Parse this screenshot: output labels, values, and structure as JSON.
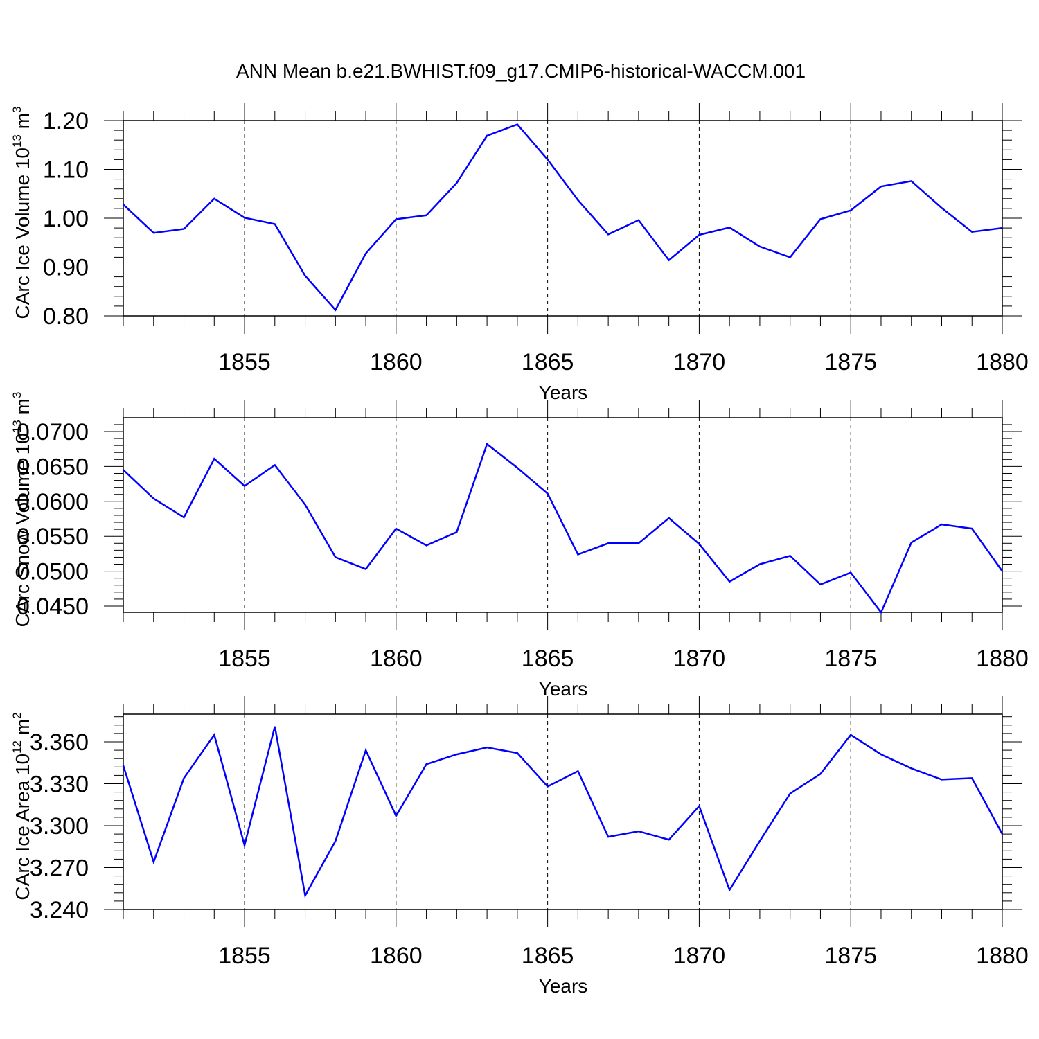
{
  "title": "ANN Mean b.e21.BWHIST.f09_g17.CMIP6-historical-WACCM.001",
  "chart_data": [
    {
      "type": "line",
      "title": "ANN Mean b.e21.BWHIST.f09_g17.CMIP6-historical-WACCM.001",
      "xlabel": "Years",
      "ylabel_parts": [
        "CArc Ice Volume 10",
        "13",
        " m",
        "3"
      ],
      "xlim": [
        1851,
        1880
      ],
      "ylim": [
        0.8,
        1.22
      ],
      "xticks": [
        1855,
        1860,
        1865,
        1870,
        1875,
        1880
      ],
      "yticks": [
        0.8,
        0.9,
        1.0,
        1.1,
        1.2
      ],
      "ytick_labels": [
        "0.80",
        "0.90",
        "1.00",
        "1.10",
        "1.20"
      ],
      "grid": "vertical dashed at major x ticks",
      "line_color": "#0000ff",
      "x": [
        1851,
        1852,
        1853,
        1854,
        1855,
        1856,
        1857,
        1858,
        1859,
        1860,
        1861,
        1862,
        1863,
        1864,
        1865,
        1866,
        1867,
        1868,
        1869,
        1870,
        1871,
        1872,
        1873,
        1874,
        1875,
        1876,
        1877,
        1878,
        1879,
        1880
      ],
      "values": [
        1.028,
        0.97,
        0.978,
        1.04,
        1.001,
        0.988,
        0.882,
        0.812,
        0.928,
        0.998,
        1.006,
        1.072,
        1.169,
        1.192,
        1.12,
        1.037,
        0.967,
        0.996,
        0.914,
        0.966,
        0.981,
        0.942,
        0.92,
        0.998,
        1.016,
        1.065,
        1.076,
        1.021,
        0.972,
        0.98
      ]
    },
    {
      "type": "line",
      "title": "",
      "xlabel": "Years",
      "ylabel_parts": [
        "CArc Snow Volume 10",
        "13",
        " m",
        "3"
      ],
      "xlim": [
        1851,
        1880
      ],
      "ylim": [
        0.044,
        0.072
      ],
      "xticks": [
        1855,
        1860,
        1865,
        1870,
        1875,
        1880
      ],
      "yticks": [
        0.045,
        0.05,
        0.055,
        0.06,
        0.065,
        0.07
      ],
      "ytick_labels": [
        "0.0450",
        "0.0500",
        "0.0550",
        "0.0600",
        "0.0650",
        "0.0700"
      ],
      "grid": "vertical dashed at major x ticks",
      "line_color": "#0000ff",
      "x": [
        1851,
        1852,
        1853,
        1854,
        1855,
        1856,
        1857,
        1858,
        1859,
        1860,
        1861,
        1862,
        1863,
        1864,
        1865,
        1866,
        1867,
        1868,
        1869,
        1870,
        1871,
        1872,
        1873,
        1874,
        1875,
        1876,
        1877,
        1878,
        1879,
        1880
      ],
      "values": [
        0.0645,
        0.0604,
        0.0577,
        0.0661,
        0.0622,
        0.0652,
        0.0595,
        0.052,
        0.0503,
        0.0561,
        0.0537,
        0.0556,
        0.0682,
        0.0648,
        0.0611,
        0.0524,
        0.054,
        0.054,
        0.0576,
        0.0539,
        0.0485,
        0.051,
        0.0522,
        0.0481,
        0.0498,
        0.0441,
        0.0541,
        0.0567,
        0.0561,
        0.05
      ]
    },
    {
      "type": "line",
      "title": "",
      "xlabel": "Years",
      "ylabel_parts": [
        "CArc Ice Area 10",
        "12",
        " m",
        "2"
      ],
      "xlim": [
        1851,
        1880
      ],
      "ylim": [
        3.24,
        3.38
      ],
      "xticks": [
        1855,
        1860,
        1865,
        1870,
        1875,
        1880
      ],
      "yticks": [
        3.24,
        3.27,
        3.3,
        3.33,
        3.36
      ],
      "ytick_labels": [
        "3.240",
        "3.270",
        "3.300",
        "3.330",
        "3.360"
      ],
      "grid": "vertical dashed at major x ticks",
      "line_color": "#0000ff",
      "x": [
        1851,
        1852,
        1853,
        1854,
        1855,
        1856,
        1857,
        1858,
        1859,
        1860,
        1861,
        1862,
        1863,
        1864,
        1865,
        1866,
        1867,
        1868,
        1869,
        1870,
        1871,
        1872,
        1873,
        1874,
        1875,
        1876,
        1877,
        1878,
        1879,
        1880
      ],
      "values": [
        3.343,
        3.274,
        3.334,
        3.365,
        3.286,
        3.371,
        3.25,
        3.289,
        3.354,
        3.307,
        3.344,
        3.351,
        3.356,
        3.352,
        3.328,
        3.339,
        3.292,
        3.296,
        3.29,
        3.314,
        3.254,
        3.289,
        3.323,
        3.337,
        3.365,
        3.351,
        3.341,
        3.333,
        3.334,
        3.294
      ]
    }
  ]
}
